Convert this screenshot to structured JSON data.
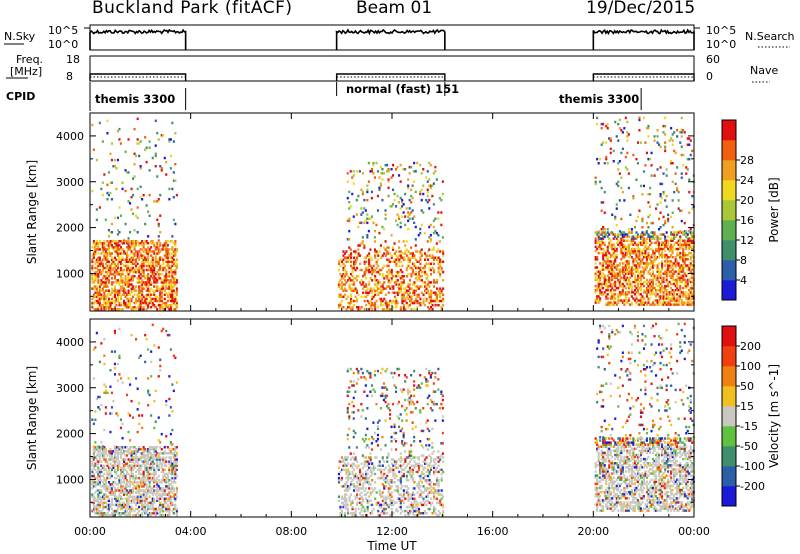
{
  "header": {
    "title": "Buckland Park (fitACF)",
    "beam": "Beam 01",
    "date": "19/Dec/2015"
  },
  "top_strips": {
    "nsky_label": "N.Sky",
    "nsky_ticks": [
      "10^5",
      "10^0"
    ],
    "nsearch_label": "N.Search",
    "nsearch_ticks": [
      "10^5",
      "10^0"
    ],
    "freq_label": "Freq.",
    "freq_unit": "[MHz]",
    "freq_ticks": [
      "18",
      "8"
    ],
    "nave_label": "Nave",
    "nave_ticks": [
      "60",
      "0"
    ],
    "cpid_label": "CPID",
    "cpid_segments": [
      {
        "name": "themis 3300",
        "start": 0.0,
        "end": 3.8
      },
      {
        "name": "normal (fast) 151",
        "start": 9.8,
        "end": 14.1
      },
      {
        "name": "themis 3300",
        "start": 20.0,
        "end": 21.9
      }
    ]
  },
  "chart_data": [
    {
      "type": "heatmap",
      "title": "",
      "xlabel": "",
      "ylabel": "Slant Range [km]",
      "x_ticks": [
        "00:00",
        "04:00",
        "08:00",
        "12:00",
        "16:00",
        "20:00",
        "00:00"
      ],
      "x_range_hours": [
        0,
        24
      ],
      "y_ticks": [
        1000,
        2000,
        3000,
        4000
      ],
      "y_range_km": [
        180,
        4500
      ],
      "colorbar_label": "Power [dB]",
      "colorbar_ticks": [
        "4",
        "8",
        "12",
        "16",
        "20",
        "24",
        "28"
      ],
      "colorbar_colors": [
        "#1a1ad8",
        "#2c5fa8",
        "#3f8f6c",
        "#5fb050",
        "#a8c838",
        "#f0d820",
        "#f0a020",
        "#f06010",
        "#e01010"
      ],
      "data_intervals_hours": [
        [
          0.0,
          3.5
        ],
        [
          9.8,
          14.1
        ],
        [
          20.0,
          24.0
        ]
      ]
    },
    {
      "type": "heatmap",
      "title": "",
      "xlabel": "Time UT",
      "ylabel": "Slant Range [km]",
      "x_ticks": [
        "00:00",
        "04:00",
        "08:00",
        "12:00",
        "16:00",
        "20:00",
        "00:00"
      ],
      "x_range_hours": [
        0,
        24
      ],
      "y_ticks": [
        1000,
        2000,
        3000,
        4000
      ],
      "y_range_km": [
        180,
        4500
      ],
      "colorbar_label": "Velocity [m s^-1]",
      "colorbar_ticks": [
        "200",
        "100",
        "50",
        "15",
        "-15",
        "-50",
        "-100",
        "-200"
      ],
      "colorbar_colors": [
        "#1a1ad8",
        "#2c5fa8",
        "#3f8f6c",
        "#60c040",
        "#c8c8c0",
        "#f0c020",
        "#f08010",
        "#f04010",
        "#e01010"
      ],
      "data_intervals_hours": [
        [
          0.0,
          3.5
        ],
        [
          9.8,
          14.1
        ],
        [
          20.0,
          24.0
        ]
      ]
    }
  ]
}
